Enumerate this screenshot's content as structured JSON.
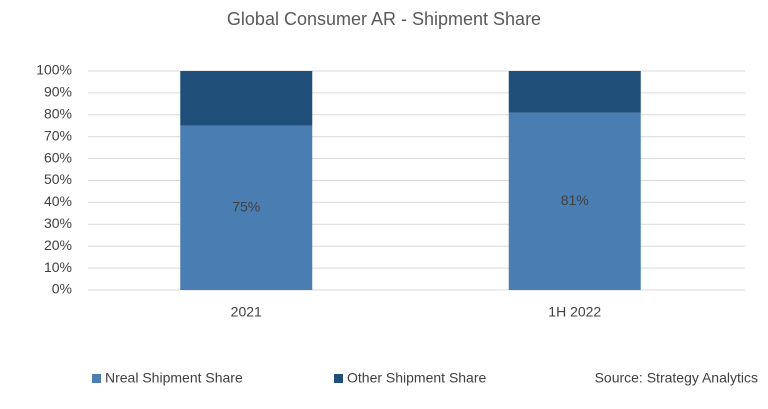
{
  "chart_data": {
    "type": "stacked_bar",
    "title": "Global Consumer AR - Shipment Share",
    "categories": [
      "2021",
      "1H 2022"
    ],
    "series": [
      {
        "name": "Nreal Shipment Share",
        "color": "#4a7eb3",
        "values": [
          75,
          81
        ],
        "value_labels": [
          "75%",
          "81%"
        ]
      },
      {
        "name": "Other Shipment Share",
        "color": "#1f4e79",
        "values": [
          25,
          19
        ]
      }
    ],
    "ylim": [
      0,
      100
    ],
    "yticks": [
      {
        "value": 0,
        "label": "0%"
      },
      {
        "value": 10,
        "label": "10%"
      },
      {
        "value": 20,
        "label": "20%"
      },
      {
        "value": 30,
        "label": "30%"
      },
      {
        "value": 40,
        "label": "40%"
      },
      {
        "value": 50,
        "label": "50%"
      },
      {
        "value": 60,
        "label": "60%"
      },
      {
        "value": 70,
        "label": "70%"
      },
      {
        "value": 80,
        "label": "80%"
      },
      {
        "value": 90,
        "label": "90%"
      },
      {
        "value": 100,
        "label": "100%"
      }
    ],
    "grid": true,
    "source": "Source: Strategy Analytics"
  }
}
